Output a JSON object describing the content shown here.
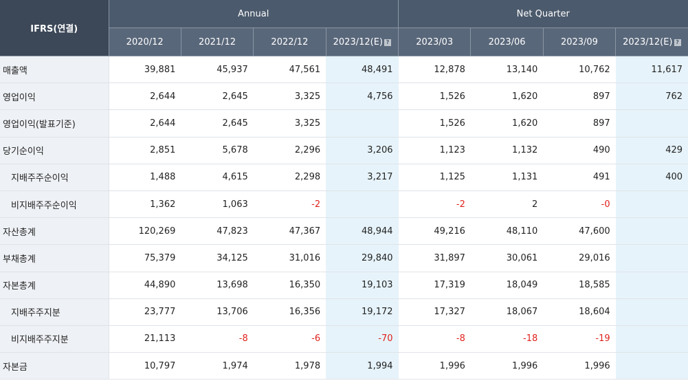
{
  "header": {
    "corner": "IFRS(연결)",
    "groups": {
      "annual": "Annual",
      "quarter": "Net Quarter"
    },
    "periods": [
      "2020/12",
      "2021/12",
      "2022/12",
      "2023/12(E)",
      "2023/03",
      "2023/06",
      "2023/09",
      "2023/12(E)"
    ],
    "estimate_icon": "?"
  },
  "rows": [
    {
      "label": "매출액",
      "values": [
        "39,881",
        "45,937",
        "47,561",
        "48,491",
        "12,878",
        "13,140",
        "10,762",
        "11,617"
      ]
    },
    {
      "label": "영업이익",
      "values": [
        "2,644",
        "2,645",
        "3,325",
        "4,756",
        "1,526",
        "1,620",
        "897",
        "762"
      ]
    },
    {
      "label": "영업이익(발표기준)",
      "values": [
        "2,644",
        "2,645",
        "3,325",
        "",
        "1,526",
        "1,620",
        "897",
        ""
      ]
    },
    {
      "label": "당기순이익",
      "values": [
        "2,851",
        "5,678",
        "2,296",
        "3,206",
        "1,123",
        "1,132",
        "490",
        "429"
      ]
    },
    {
      "label": "지배주주순이익",
      "values": [
        "1,488",
        "4,615",
        "2,298",
        "3,217",
        "1,125",
        "1,131",
        "491",
        "400"
      ]
    },
    {
      "label": "비지배주주순이익",
      "values": [
        "1,362",
        "1,063",
        "-2",
        "",
        "-2",
        "2",
        "-0",
        ""
      ]
    },
    {
      "label": "자산총계",
      "values": [
        "120,269",
        "47,823",
        "47,367",
        "48,944",
        "49,216",
        "48,110",
        "47,600",
        ""
      ]
    },
    {
      "label": "부채총계",
      "values": [
        "75,379",
        "34,125",
        "31,016",
        "29,840",
        "31,897",
        "30,061",
        "29,016",
        ""
      ]
    },
    {
      "label": "자본총계",
      "values": [
        "44,890",
        "13,698",
        "16,350",
        "19,103",
        "17,319",
        "18,049",
        "18,585",
        ""
      ]
    },
    {
      "label": "지배주주지분",
      "values": [
        "23,777",
        "13,706",
        "16,356",
        "19,172",
        "17,327",
        "18,067",
        "18,604",
        ""
      ]
    },
    {
      "label": "비지배주주지분",
      "values": [
        "21,113",
        "-8",
        "-6",
        "-70",
        "-8",
        "-18",
        "-19",
        ""
      ]
    },
    {
      "label": "자본금",
      "values": [
        "10,797",
        "1,974",
        "1,978",
        "1,994",
        "1,996",
        "1,996",
        "1,996",
        ""
      ]
    }
  ],
  "colors": {
    "header_bg": "#4b5a6c",
    "label_bg": "#eef1f5",
    "estimate_bg": "#e6f3fa",
    "negative": "#e0221c"
  }
}
